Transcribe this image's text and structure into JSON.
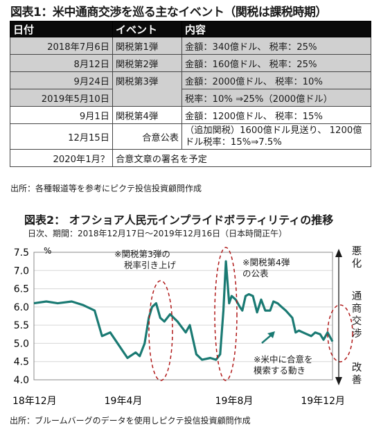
{
  "table_title": "図表1：米中通商交渉を巡る主なイベント（関税は課税時期）",
  "table": {
    "headers": [
      "日付",
      "イベント",
      "内容"
    ],
    "rows": [
      {
        "date": "2018年7月6日",
        "event": "関税第1弾",
        "content": "金額：340億ドル、 税率：25%"
      },
      {
        "date": "8月12日",
        "event": "関税第2弾",
        "content": "金額：160億ドル、 税率：25%"
      },
      {
        "date": "9月24日",
        "event": "関税第3弾",
        "content": "金額：2000億ドル、 税率：10%"
      },
      {
        "date": "2019年5月10日",
        "event": "",
        "content": "税率：10% ⇒25%（2000億ドル）"
      },
      {
        "date": "9月1日",
        "event": "関税第4弾",
        "content": "金額：1200億ドル、 税率：15%"
      },
      {
        "date": "12月15日",
        "event": "合意公表",
        "content": "（追加関税）1600億ドル見送り、 1200億ドル税率：15%⇒7.5%"
      },
      {
        "date": "2020年1月？",
        "event": "合意文章の署名を予定",
        "content": ""
      }
    ]
  },
  "table_source": "出所：各種報道等を参考にピクテ投信投資顧問作成",
  "chart_title": "図表2： オフショア人民元インプライドボラティリティの推移",
  "chart_subtitle": "日次、期間：2018年12月17日～2019年12月16日（日本時間正午）",
  "chart_source": "出所：ブルームバーグのデータを使用しピクテ投信投資顧問作成",
  "chart_data": {
    "type": "line",
    "title": "図表2： オフショア人民元インプライドボラティリティの推移",
    "unit_label": "%",
    "ylim": [
      4.0,
      7.5
    ],
    "yticks": [
      "7.5",
      "7.0",
      "6.5",
      "6.0",
      "5.5",
      "5.0",
      "4.5",
      "4.0"
    ],
    "xticks": [
      "18年12月",
      "19年4月",
      "19年8月",
      "19年12月"
    ],
    "grid": true,
    "color": "#1a7a73",
    "series": [
      {
        "x": [
          "2018-12-17",
          "2019-01-01",
          "2019-01-15",
          "2019-02-01",
          "2019-02-15",
          "2019-03-01",
          "2019-03-10",
          "2019-03-20",
          "2019-04-01",
          "2019-04-10",
          "2019-04-20",
          "2019-04-25",
          "2019-05-01",
          "2019-05-06",
          "2019-05-10",
          "2019-05-15",
          "2019-05-20",
          "2019-05-25",
          "2019-06-01",
          "2019-06-10",
          "2019-06-20",
          "2019-06-25",
          "2019-06-29",
          "2019-07-03",
          "2019-07-10",
          "2019-07-20",
          "2019-07-27",
          "2019-08-01",
          "2019-08-05",
          "2019-08-08",
          "2019-08-12",
          "2019-08-15",
          "2019-08-20",
          "2019-08-25",
          "2019-08-28",
          "2019-09-01",
          "2019-09-05",
          "2019-09-10",
          "2019-09-15",
          "2019-09-20",
          "2019-09-25",
          "2019-10-01",
          "2019-10-05",
          "2019-10-10",
          "2019-10-15",
          "2019-10-20",
          "2019-10-28",
          "2019-11-01",
          "2019-11-05",
          "2019-11-10",
          "2019-11-15",
          "2019-11-20",
          "2019-11-25",
          "2019-12-01",
          "2019-12-05",
          "2019-12-10",
          "2019-12-16"
        ],
        "y": [
          6.1,
          6.15,
          6.1,
          6.15,
          6.05,
          5.9,
          5.2,
          5.3,
          4.9,
          4.6,
          4.75,
          4.65,
          5.0,
          5.7,
          6.0,
          6.1,
          5.7,
          5.6,
          5.8,
          5.6,
          5.3,
          5.5,
          5.1,
          4.7,
          4.55,
          4.6,
          4.55,
          4.7,
          5.9,
          7.25,
          6.1,
          6.3,
          6.2,
          6.0,
          5.9,
          6.3,
          6.35,
          6.3,
          5.85,
          6.2,
          5.9,
          5.9,
          6.15,
          6.1,
          6.0,
          5.9,
          5.7,
          5.3,
          5.35,
          5.3,
          5.25,
          5.2,
          5.3,
          5.25,
          5.1,
          5.3,
          5.05
        ]
      }
    ],
    "annotations": [
      {
        "text": [
          "※関税第3弾の",
          "税率引き上げ"
        ]
      },
      {
        "text": [
          "※関税第4弾",
          "の公表"
        ]
      },
      {
        "text": [
          "※米中に合意を",
          "模索する動き"
        ]
      }
    ],
    "side_labels": {
      "top": "悪化",
      "middle": "通商交渉",
      "bottom": "改善"
    }
  }
}
